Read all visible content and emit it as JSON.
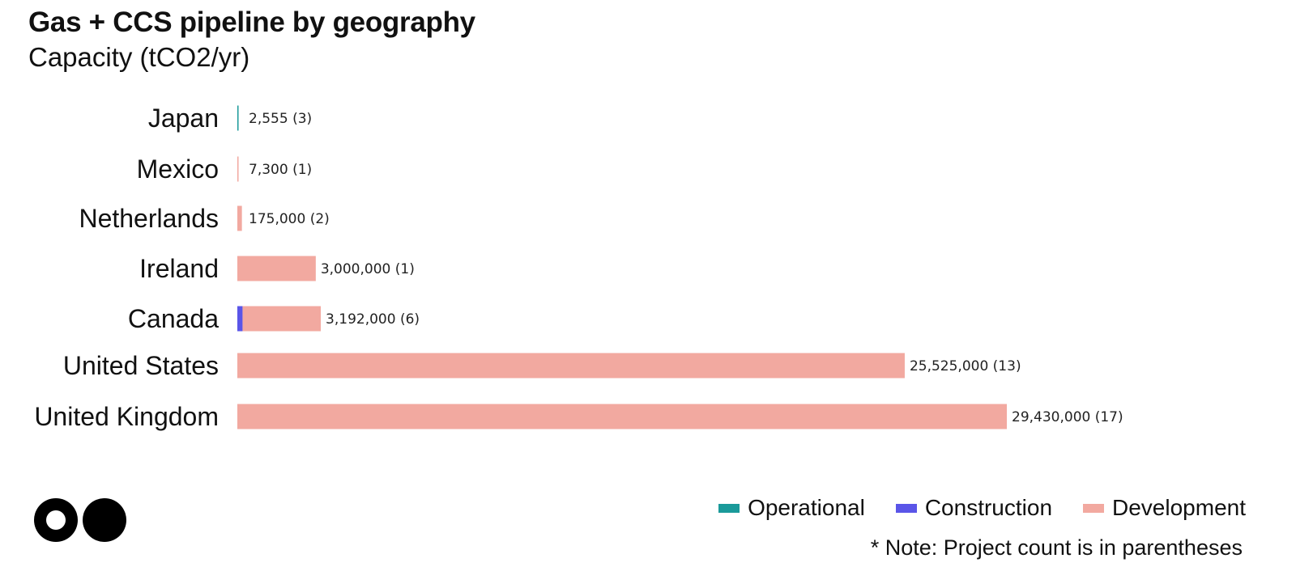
{
  "header": {
    "title": "Gas + CCS pipeline by geography",
    "subtitle": "Capacity (tCO2/yr)"
  },
  "legend": {
    "items": [
      {
        "label": "Operational",
        "color": "#1a9a9a"
      },
      {
        "label": "Construction",
        "color": "#5a55e8"
      },
      {
        "label": "Development",
        "color": "#f2a9a0"
      }
    ]
  },
  "note": "*  Note: Project count is in parentheses",
  "logo": {
    "icon": "two-circles-logo-icon"
  },
  "chart_data": {
    "type": "bar",
    "orientation": "horizontal",
    "stacked": true,
    "categories": [
      "Japan",
      "Mexico",
      "Netherlands",
      "Ireland",
      "Canada",
      "United States",
      "United Kingdom"
    ],
    "series": [
      {
        "name": "Operational",
        "color": "#1a9a9a",
        "values": [
          2555,
          0,
          0,
          0,
          0,
          0,
          0
        ]
      },
      {
        "name": "Construction",
        "color": "#5a55e8",
        "values": [
          0,
          0,
          0,
          0,
          200000,
          0,
          0
        ]
      },
      {
        "name": "Development",
        "color": "#f2a9a0",
        "values": [
          0,
          7300,
          175000,
          3000000,
          2992000,
          25525000,
          29430000
        ]
      }
    ],
    "data_labels": [
      "2,555 (3)",
      "7,300 (1)",
      "175,000 (2)",
      "3,000,000  (1)",
      "3,192,000 (6)",
      "25,525,000 (13)",
      "29,430,000 (17)"
    ],
    "xlim": [
      0,
      29430000
    ],
    "grid": false,
    "legend_position": "bottom-right"
  }
}
